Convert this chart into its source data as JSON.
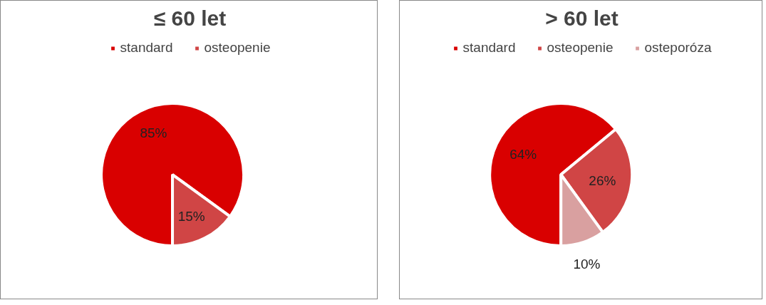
{
  "chart_data": [
    {
      "type": "pie",
      "title": "≤ 60 let",
      "categories": [
        "standard",
        "osteopenie"
      ],
      "values": [
        85,
        15
      ],
      "colors": [
        "#d90000",
        "#d04545"
      ],
      "legend": "top",
      "value_labels": [
        "85%",
        "15%"
      ]
    },
    {
      "type": "pie",
      "title": "> 60 let",
      "categories": [
        "standard",
        "osteopenie",
        "osteporóza"
      ],
      "values": [
        64,
        26,
        10
      ],
      "colors": [
        "#d90000",
        "#d04545",
        "#d9a0a0"
      ],
      "legend": "top",
      "value_labels": [
        "64%",
        "26%",
        "10%"
      ]
    }
  ]
}
